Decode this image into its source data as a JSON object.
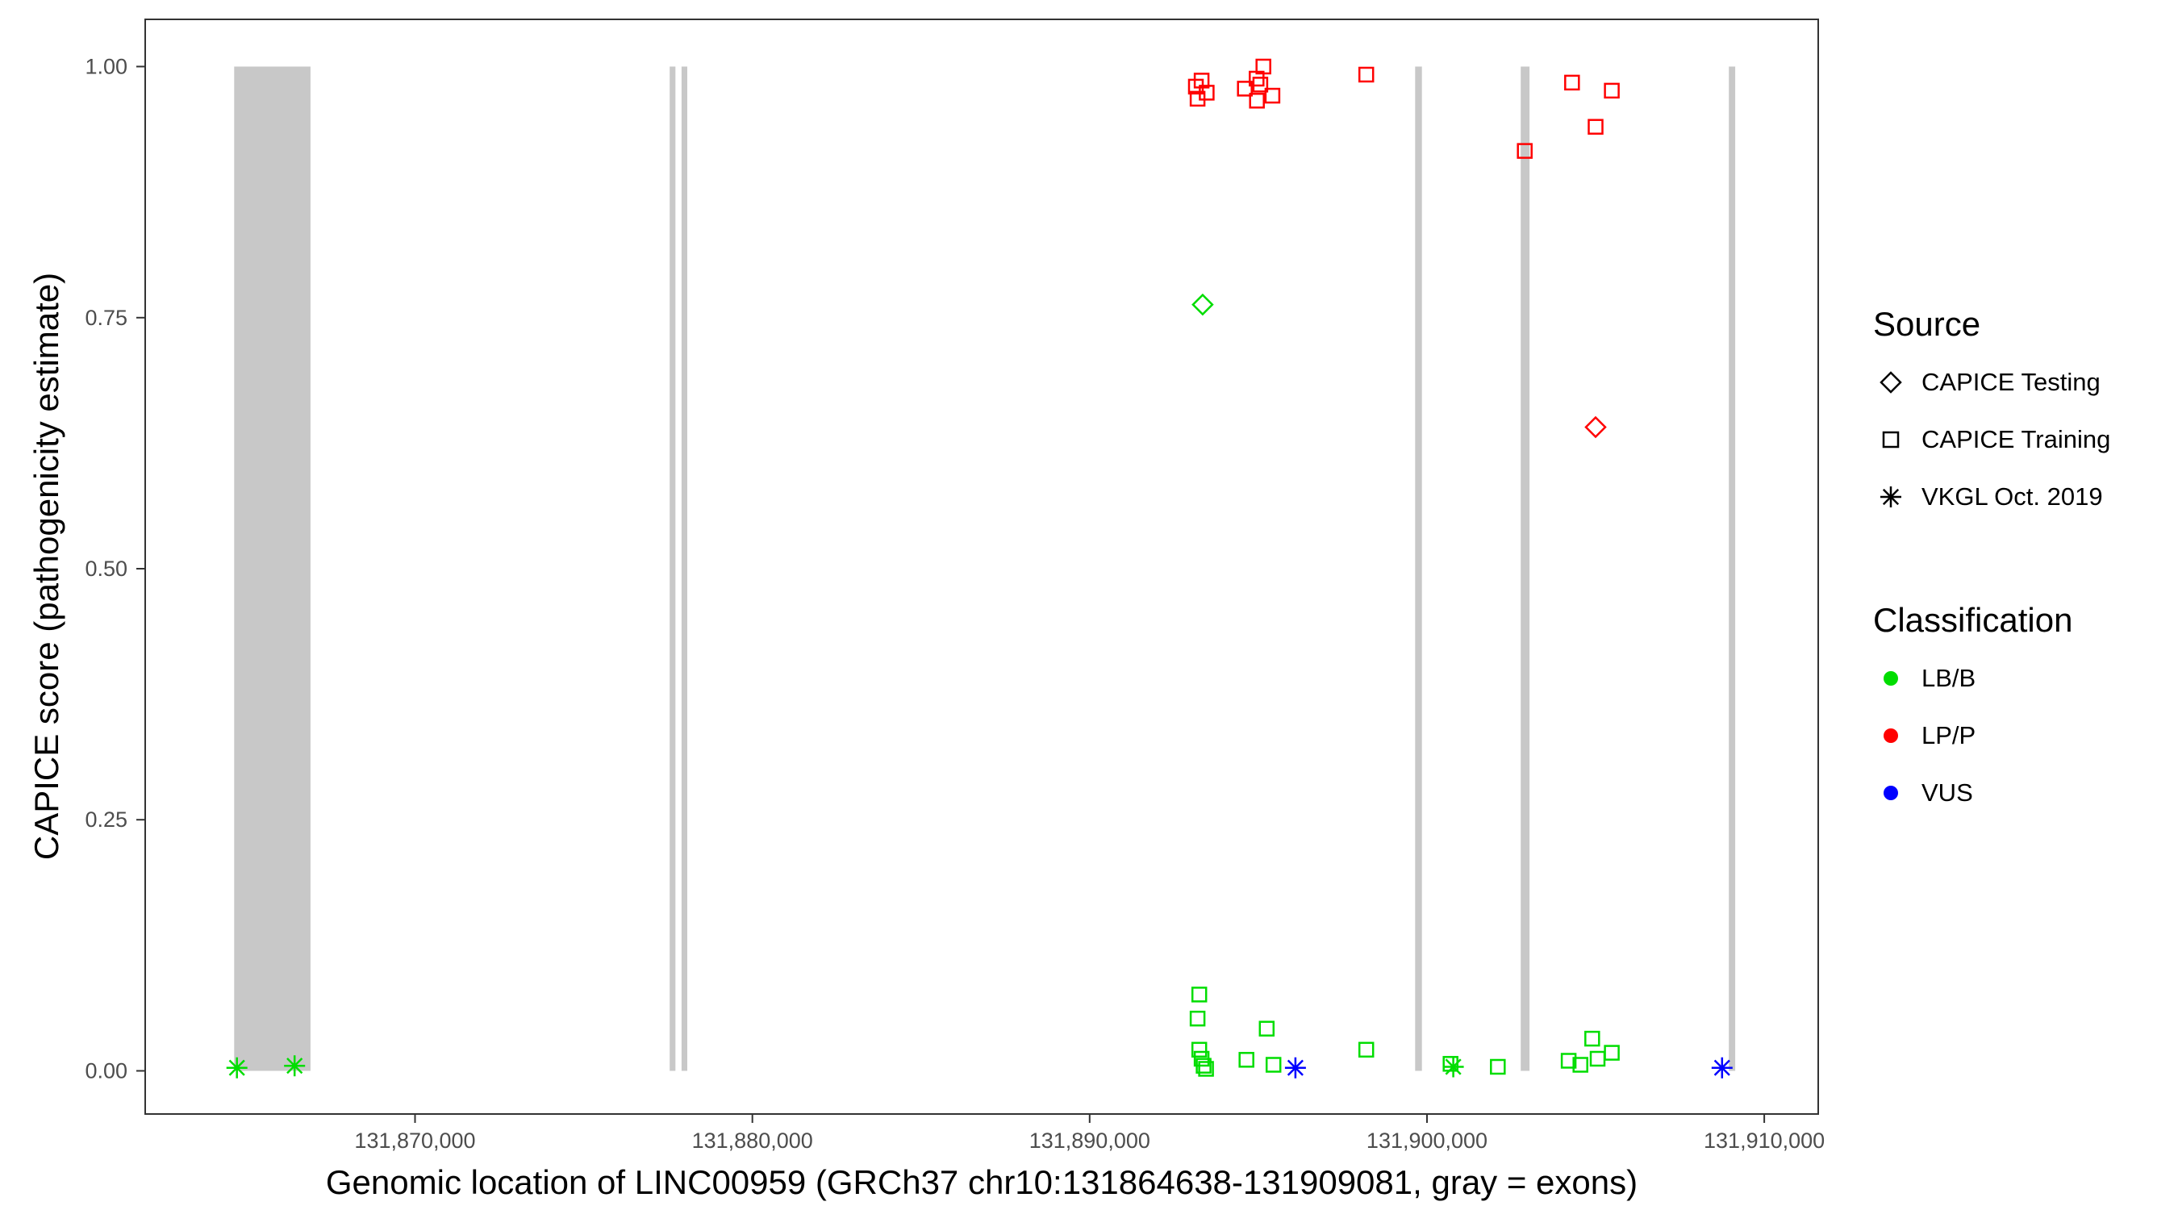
{
  "colors": {
    "LB/B": "#00dd00",
    "LP/P": "#ff0000",
    "VUS": "#0000ff",
    "exon": "#c8c8c8",
    "panel_border": "#333333",
    "tick_text": "#4d4d4d",
    "legend_symbol": "#000000"
  },
  "legend": {
    "source": {
      "title": "Source",
      "items": [
        {
          "label": "CAPICE Testing",
          "shape": "diamond"
        },
        {
          "label": "CAPICE Training",
          "shape": "square"
        },
        {
          "label": "VKGL Oct. 2019",
          "shape": "asterisk"
        }
      ]
    },
    "classification": {
      "title": "Classification",
      "items": [
        {
          "label": "LB/B",
          "color": "#00dd00"
        },
        {
          "label": "LP/P",
          "color": "#ff0000"
        },
        {
          "label": "VUS",
          "color": "#0000ff"
        }
      ]
    }
  },
  "chart_data": {
    "type": "scatter",
    "title": "",
    "xlabel": "Genomic location of LINC00959 (GRCh37 chr10:131864638-131909081, gray = exons)",
    "ylabel": "CAPICE score (pathogenicity estimate)",
    "x_domain": [
      131862000,
      131911600
    ],
    "y_domain": [
      -0.043,
      1.047
    ],
    "x_ticks": [
      {
        "value": 131870000,
        "label": "131,870,000"
      },
      {
        "value": 131880000,
        "label": "131,880,000"
      },
      {
        "value": 131890000,
        "label": "131,890,000"
      },
      {
        "value": 131900000,
        "label": "131,900,000"
      },
      {
        "value": 131910000,
        "label": "131,910,000"
      }
    ],
    "y_ticks": [
      {
        "value": 0.0,
        "label": "0.00"
      },
      {
        "value": 0.25,
        "label": "0.25"
      },
      {
        "value": 0.5,
        "label": "0.50"
      },
      {
        "value": 0.75,
        "label": "0.75"
      },
      {
        "value": 1.0,
        "label": "1.00"
      }
    ],
    "grid": "off",
    "legend_position": "right",
    "exons_y_range": [
      0,
      1
    ],
    "exons": [
      [
        131864638,
        131866900
      ],
      [
        131877550,
        131877720
      ],
      [
        131877900,
        131878070
      ],
      [
        131899650,
        131899850
      ],
      [
        131902780,
        131903040
      ],
      [
        131908950,
        131909140
      ]
    ],
    "shape_by_source": {
      "CAPICE Testing": "diamond",
      "CAPICE Training": "square",
      "VKGL Oct. 2019": "asterisk"
    },
    "points": [
      {
        "x": 131893150,
        "y": 0.98,
        "source": "CAPICE Training",
        "classification": "LP/P"
      },
      {
        "x": 131893320,
        "y": 0.986,
        "source": "CAPICE Training",
        "classification": "LP/P"
      },
      {
        "x": 131893200,
        "y": 0.968,
        "source": "CAPICE Training",
        "classification": "LP/P"
      },
      {
        "x": 131893470,
        "y": 0.974,
        "source": "CAPICE Training",
        "classification": "LP/P"
      },
      {
        "x": 131894600,
        "y": 0.978,
        "source": "CAPICE Training",
        "classification": "LP/P"
      },
      {
        "x": 131894950,
        "y": 0.988,
        "source": "CAPICE Training",
        "classification": "LP/P"
      },
      {
        "x": 131895150,
        "y": 1.0,
        "source": "CAPICE Training",
        "classification": "LP/P"
      },
      {
        "x": 131895060,
        "y": 0.982,
        "source": "CAPICE Training",
        "classification": "LP/P"
      },
      {
        "x": 131894960,
        "y": 0.966,
        "source": "CAPICE Training",
        "classification": "LP/P"
      },
      {
        "x": 131895420,
        "y": 0.971,
        "source": "CAPICE Training",
        "classification": "LP/P"
      },
      {
        "x": 131898200,
        "y": 0.992,
        "source": "CAPICE Training",
        "classification": "LP/P"
      },
      {
        "x": 131902900,
        "y": 0.916,
        "source": "CAPICE Training",
        "classification": "LP/P"
      },
      {
        "x": 131904300,
        "y": 0.984,
        "source": "CAPICE Training",
        "classification": "LP/P"
      },
      {
        "x": 131905000,
        "y": 0.94,
        "source": "CAPICE Training",
        "classification": "LP/P"
      },
      {
        "x": 131905480,
        "y": 0.976,
        "source": "CAPICE Training",
        "classification": "LP/P"
      },
      {
        "x": 131905000,
        "y": 0.641,
        "source": "CAPICE Testing",
        "classification": "LP/P"
      },
      {
        "x": 131893350,
        "y": 0.763,
        "source": "CAPICE Testing",
        "classification": "LB/B"
      },
      {
        "x": 131893250,
        "y": 0.076,
        "source": "CAPICE Training",
        "classification": "LB/B"
      },
      {
        "x": 131893200,
        "y": 0.052,
        "source": "CAPICE Training",
        "classification": "LB/B"
      },
      {
        "x": 131893250,
        "y": 0.021,
        "source": "CAPICE Training",
        "classification": "LB/B"
      },
      {
        "x": 131893320,
        "y": 0.012,
        "source": "CAPICE Training",
        "classification": "LB/B"
      },
      {
        "x": 131893380,
        "y": 0.005,
        "source": "CAPICE Training",
        "classification": "LB/B"
      },
      {
        "x": 131893450,
        "y": 0.002,
        "source": "CAPICE Training",
        "classification": "LB/B"
      },
      {
        "x": 131894650,
        "y": 0.011,
        "source": "CAPICE Training",
        "classification": "LB/B"
      },
      {
        "x": 131895250,
        "y": 0.042,
        "source": "CAPICE Training",
        "classification": "LB/B"
      },
      {
        "x": 131895450,
        "y": 0.006,
        "source": "CAPICE Training",
        "classification": "LB/B"
      },
      {
        "x": 131898200,
        "y": 0.021,
        "source": "CAPICE Training",
        "classification": "LB/B"
      },
      {
        "x": 131900700,
        "y": 0.007,
        "source": "CAPICE Training",
        "classification": "LB/B"
      },
      {
        "x": 131902100,
        "y": 0.004,
        "source": "CAPICE Training",
        "classification": "LB/B"
      },
      {
        "x": 131904200,
        "y": 0.01,
        "source": "CAPICE Training",
        "classification": "LB/B"
      },
      {
        "x": 131904550,
        "y": 0.006,
        "source": "CAPICE Training",
        "classification": "LB/B"
      },
      {
        "x": 131904900,
        "y": 0.032,
        "source": "CAPICE Training",
        "classification": "LB/B"
      },
      {
        "x": 131905060,
        "y": 0.012,
        "source": "CAPICE Training",
        "classification": "LB/B"
      },
      {
        "x": 131905480,
        "y": 0.018,
        "source": "CAPICE Training",
        "classification": "LB/B"
      },
      {
        "x": 131864720,
        "y": 0.003,
        "source": "VKGL Oct. 2019",
        "classification": "LB/B"
      },
      {
        "x": 131866430,
        "y": 0.005,
        "source": "VKGL Oct. 2019",
        "classification": "LB/B"
      },
      {
        "x": 131900780,
        "y": 0.004,
        "source": "VKGL Oct. 2019",
        "classification": "LB/B"
      },
      {
        "x": 131896100,
        "y": 0.003,
        "source": "VKGL Oct. 2019",
        "classification": "VUS"
      },
      {
        "x": 131908750,
        "y": 0.003,
        "source": "VKGL Oct. 2019",
        "classification": "VUS"
      }
    ]
  }
}
